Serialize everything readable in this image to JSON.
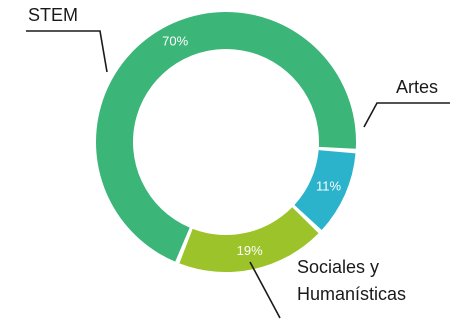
{
  "chart_data": {
    "type": "pie",
    "donut": true,
    "categories": [
      "STEM",
      "Artes",
      "Sociales y Humanísticas"
    ],
    "values": [
      70,
      11,
      19
    ],
    "value_labels": [
      "70%",
      "11%",
      "19%"
    ],
    "colors": [
      "#3cb579",
      "#2bb3cc",
      "#9cc32a"
    ],
    "category_label_lines": [
      [
        "STEM"
      ],
      [
        "Artes"
      ],
      [
        "Sociales y",
        "Humanísticas"
      ]
    ],
    "legend": "leader-line labels outside ring"
  }
}
